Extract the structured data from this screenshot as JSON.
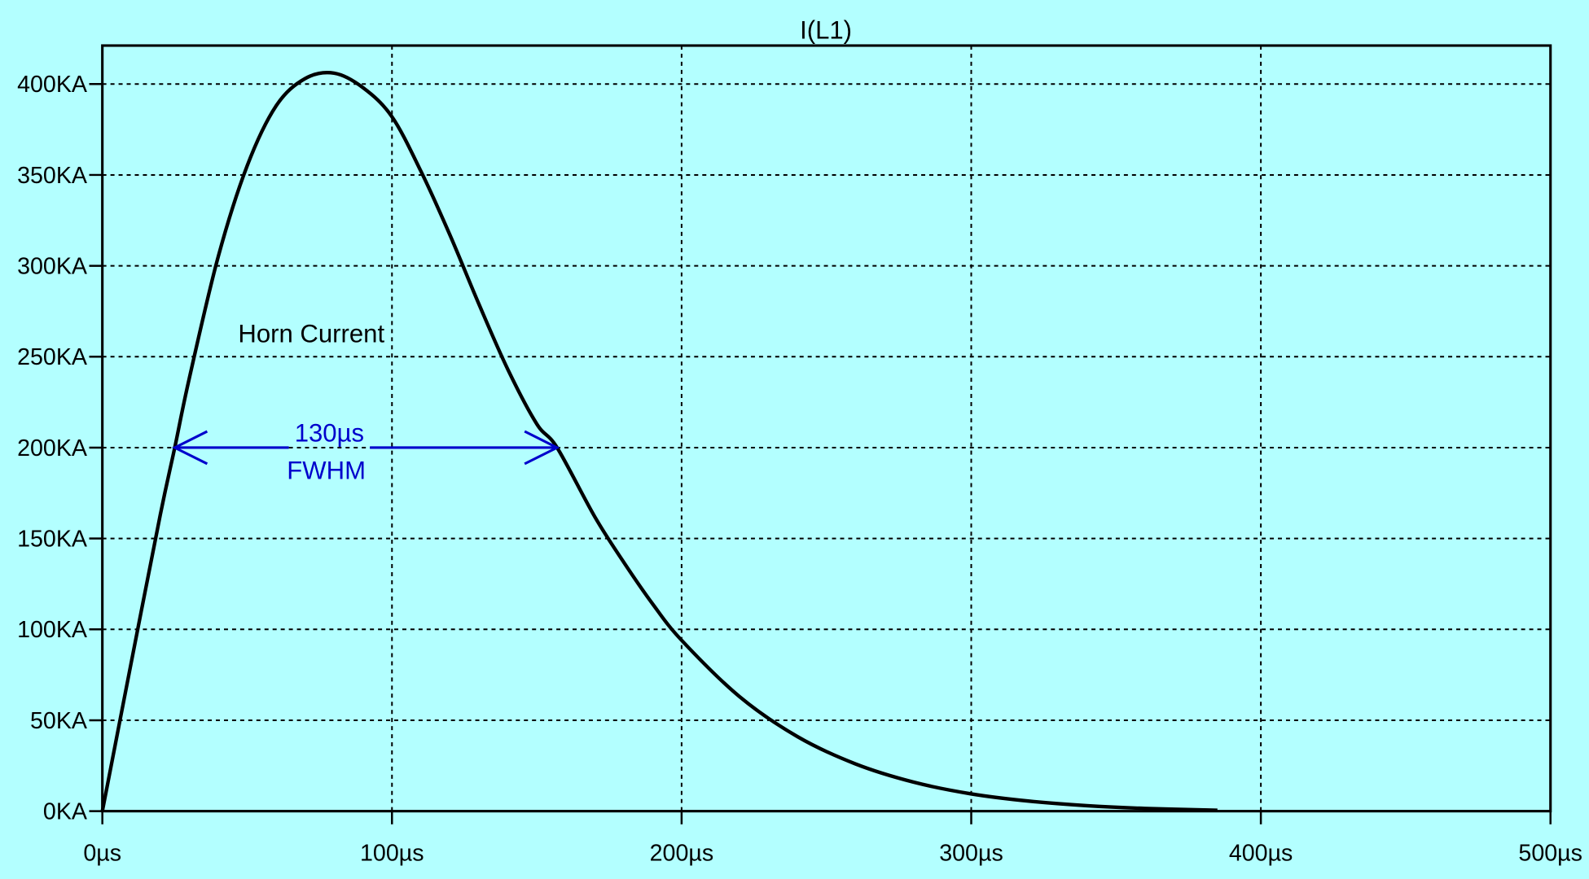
{
  "chart_data": {
    "type": "line",
    "title": "I(L1)",
    "xlabel": "",
    "ylabel": "",
    "xlim": [
      0,
      500
    ],
    "ylim": [
      0,
      421
    ],
    "grid": true,
    "x_ticks": [
      0,
      100,
      200,
      300,
      400,
      500
    ],
    "x_tick_labels": [
      "0µs",
      "100µs",
      "200µs",
      "300µs",
      "400µs",
      "500µs"
    ],
    "y_ticks": [
      0,
      50,
      100,
      150,
      200,
      250,
      300,
      350,
      400
    ],
    "y_tick_labels": [
      "0KA",
      "50KA",
      "100KA",
      "150KA",
      "200KA",
      "250KA",
      "300KA",
      "350KA",
      "400KA"
    ],
    "series": [
      {
        "name": "Horn Current",
        "color": "#000000",
        "x": [
          0,
          10,
          20,
          25,
          30,
          40,
          50,
          60,
          70,
          80,
          90,
          100,
          110,
          120,
          130,
          140,
          150,
          157,
          170,
          180,
          190,
          200,
          220,
          240,
          260,
          280,
          300,
          320,
          340,
          360,
          385
        ],
        "y": [
          0,
          82,
          163,
          200,
          238,
          305,
          355,
          388,
          403,
          406,
          398,
          382,
          352,
          317,
          279,
          243,
          213,
          200,
          162,
          137,
          114,
          94,
          63,
          41,
          26,
          16,
          9.5,
          5.5,
          3,
          1.5,
          0.5
        ]
      }
    ],
    "annotations": {
      "label": "Horn Current",
      "fwhm_value": "130µs",
      "fwhm_label": "FWHM",
      "fwhm_level": 200,
      "fwhm_start": 25,
      "fwhm_end": 157,
      "color": "#0000cc"
    }
  }
}
